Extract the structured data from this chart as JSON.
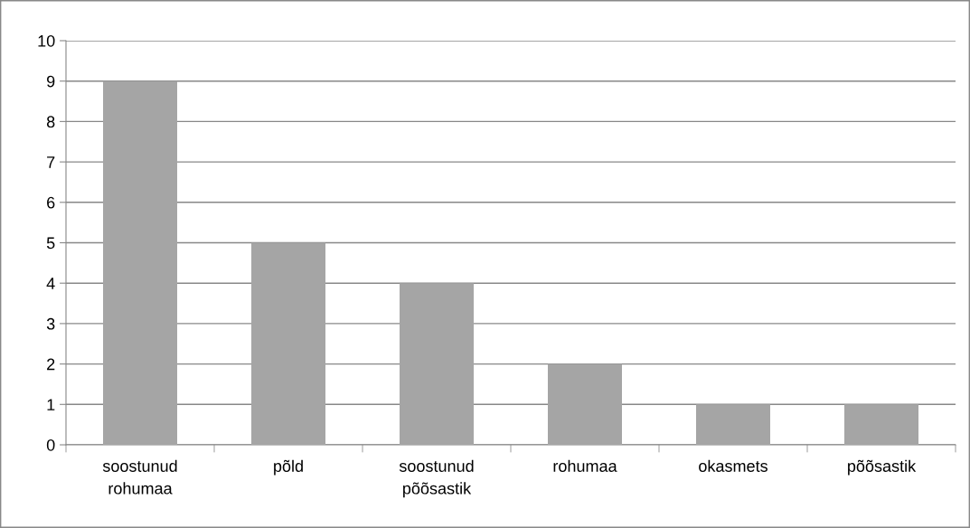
{
  "chart_data": {
    "type": "bar",
    "categories": [
      "soostunud rohumaa",
      "põld",
      "soostunud põõsastik",
      "rohumaa",
      "okasmets",
      "põõsastik"
    ],
    "values": [
      9,
      5,
      4,
      2,
      1,
      1
    ],
    "color": "#a5a5a5",
    "ylim": [
      0,
      10
    ],
    "yticks": [
      0,
      1,
      2,
      3,
      4,
      5,
      6,
      7,
      8,
      9,
      10
    ],
    "grid": "y",
    "legend": false
  }
}
